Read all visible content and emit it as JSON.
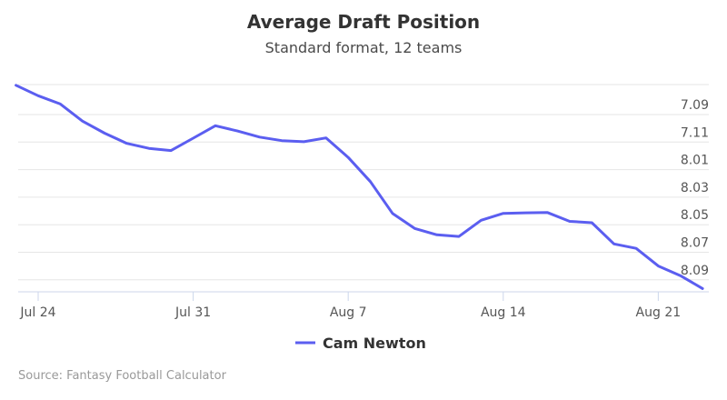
{
  "chart_data": {
    "type": "line",
    "title": "Average Draft Position",
    "subtitle": "Standard format, 12 teams",
    "source": "Source: Fantasy Football Calculator",
    "xlabel": "",
    "ylabel": "",
    "grid": true,
    "legend_position": "bottom-center",
    "y_reversed": true,
    "y_ticks": [
      "7.09",
      "7.11",
      "8.01",
      "8.03",
      "8.05",
      "8.07",
      "8.09"
    ],
    "x_ticks": [
      {
        "label": "Jul 24",
        "day": 0
      },
      {
        "label": "Jul 31",
        "day": 7
      },
      {
        "label": "Aug 7",
        "day": 14
      },
      {
        "label": "Aug 14",
        "day": 21
      },
      {
        "label": "Aug 21",
        "day": 28
      }
    ],
    "x_range_days": [
      -1,
      30
    ],
    "y_range_index": [
      -0.9,
      6.5
    ],
    "series": [
      {
        "name": "Cam Newton",
        "color": "#5b5ef0",
        "x_days": [
          -1,
          0,
          1,
          2,
          3,
          4,
          5,
          6,
          7,
          8,
          9,
          10,
          11,
          12,
          13,
          14,
          15,
          16,
          17,
          18,
          19,
          20,
          21,
          22,
          23,
          24,
          25,
          26,
          27,
          28,
          29,
          30
        ],
        "y_index": [
          -0.7,
          -0.32,
          -0.02,
          0.6,
          1.04,
          1.41,
          1.59,
          1.67,
          1.22,
          0.77,
          0.96,
          1.18,
          1.31,
          1.35,
          1.21,
          1.92,
          2.8,
          3.95,
          4.5,
          4.73,
          4.79,
          4.2,
          3.95,
          3.93,
          3.92,
          4.24,
          4.29,
          5.06,
          5.22,
          5.86,
          6.21,
          6.68
        ]
      }
    ]
  }
}
